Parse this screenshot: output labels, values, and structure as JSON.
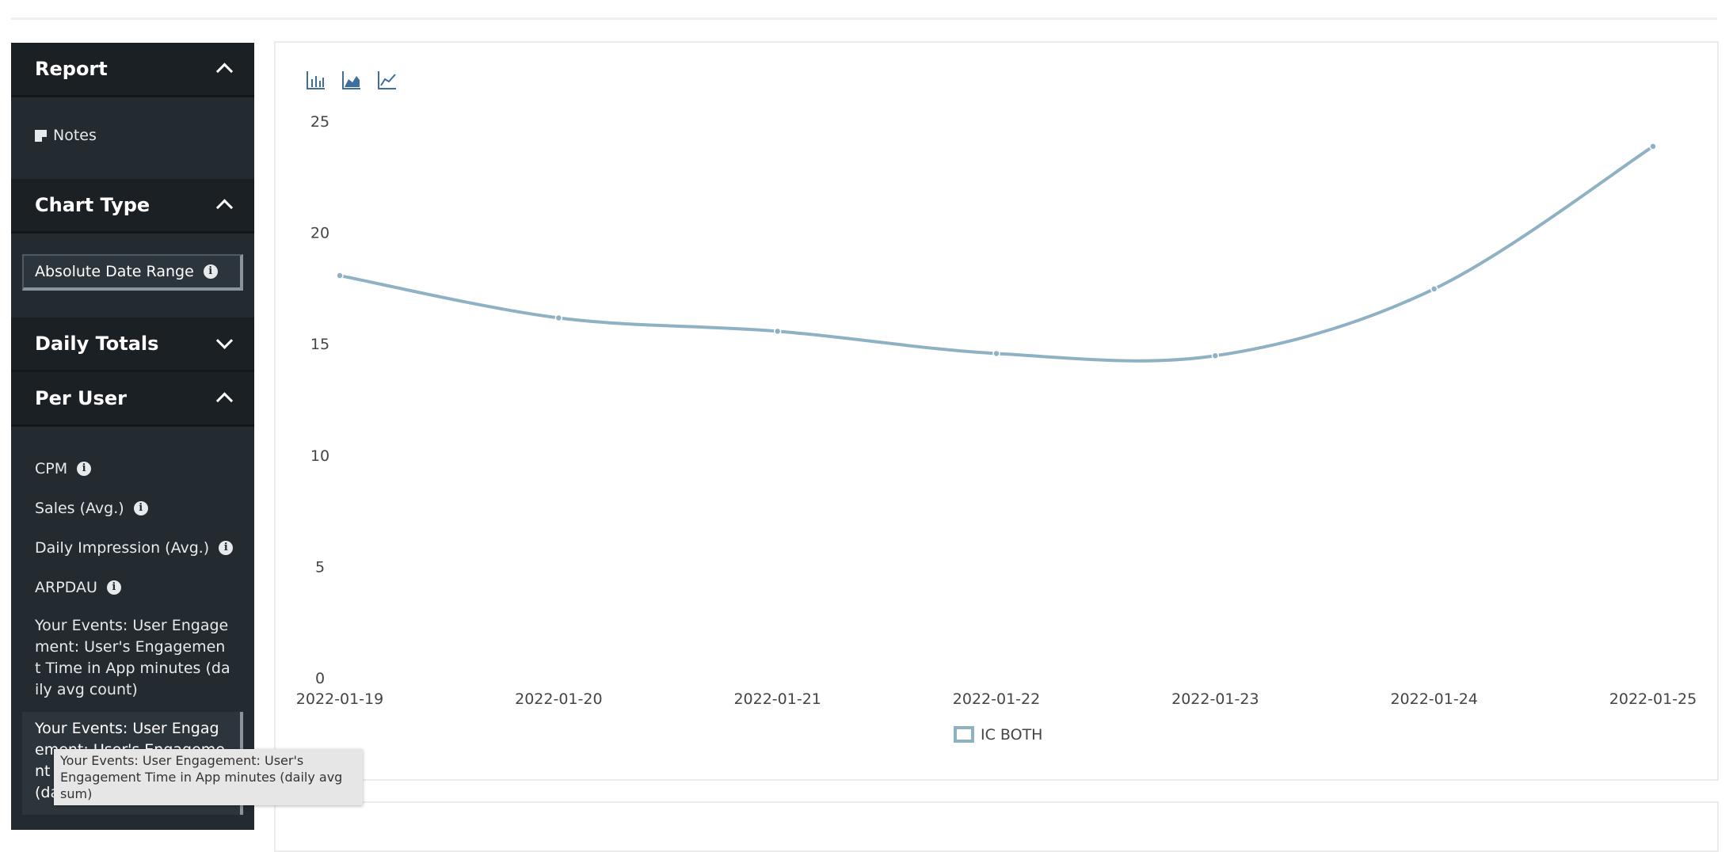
{
  "sidebar": {
    "report": {
      "title": "Report",
      "notes_label": "Notes"
    },
    "chart_type": {
      "title": "Chart Type",
      "option_label": "Absolute Date Range"
    },
    "daily_totals": {
      "title": "Daily Totals"
    },
    "per_user": {
      "title": "Per User",
      "items": [
        {
          "label": "CPM"
        },
        {
          "label": "Sales (Avg.)"
        },
        {
          "label": "Daily Impression (Avg.)"
        },
        {
          "label": "ARPDAU"
        }
      ],
      "event_count_label": "Your Events: User Engagement: User's Engagement Time in App minutes (daily avg count)",
      "event_sum_label": "Your Events: User Engagement: User's Engagement Time in App minutes (daily avg sum)"
    }
  },
  "tooltip": {
    "text": "Your Events: User Engagement: User's Engagement Time in App minutes (daily avg sum)"
  },
  "toolbar": {
    "icons": [
      "bar-chart-icon",
      "area-chart-icon",
      "line-chart-icon"
    ]
  },
  "colors": {
    "sidebar_bg": "#232a30",
    "series": "#8fb1c4",
    "toolbar_icon": "#3d6e9c"
  },
  "chart_data": {
    "type": "line",
    "x": [
      "2022-01-19",
      "2022-01-20",
      "2022-01-21",
      "2022-01-22",
      "2022-01-23",
      "2022-01-24",
      "2022-01-25"
    ],
    "series": [
      {
        "name": "IC BOTH",
        "values": [
          18.1,
          16.2,
          15.6,
          14.6,
          14.5,
          17.5,
          23.9
        ]
      }
    ],
    "ylim": [
      0,
      25
    ],
    "yticks": [
      0,
      5,
      10,
      15,
      20,
      25
    ],
    "legend_position": "bottom-center",
    "grid": false
  }
}
